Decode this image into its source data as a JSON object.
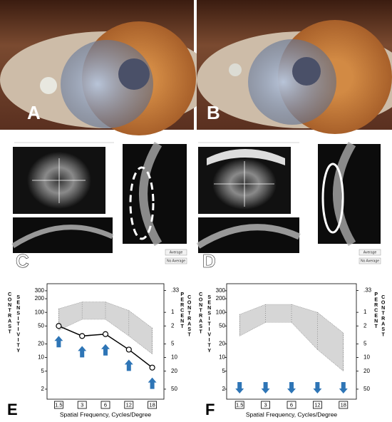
{
  "photo_labels": [
    "A",
    "B"
  ],
  "oct_panels": [
    {
      "label": "C",
      "buttons": [
        "Average",
        "No Average"
      ]
    },
    {
      "label": "D",
      "buttons": [
        "Average",
        "No Average"
      ]
    }
  ],
  "chart_data": [
    {
      "type": "line",
      "label": "E",
      "categories": [
        "1.5",
        "3",
        "6",
        "12",
        "18"
      ],
      "values": [
        50,
        30,
        33,
        15,
        6
      ],
      "color": "#000000",
      "normal_range": {
        "lower": [
          40,
          70,
          70,
          30,
          12
        ],
        "upper": [
          120,
          170,
          170,
          110,
          45
        ],
        "color": "#d6d6d6"
      },
      "ylim": [
        1.2,
        430
      ],
      "yticks": [
        2,
        5,
        10,
        20,
        50,
        100,
        200,
        300
      ],
      "y2lim": [
        83.3,
        0.233
      ],
      "y2ticks": [
        {
          "value": 0.33,
          "label": ".33"
        },
        1,
        2,
        5,
        10,
        20,
        50
      ],
      "log_scale": true,
      "y_label_lines": [
        "CONTRAST",
        "SENSITIVITY"
      ],
      "y2_label_lines": [
        "PERCENT",
        "CONTRAST"
      ],
      "x_label": "Spatial Frequency, Cycles/Degree",
      "arrows": "up",
      "arrow_color": "#2e75b6"
    },
    {
      "type": "line",
      "label": "F",
      "categories": [
        "1.5",
        "3",
        "6",
        "12",
        "18"
      ],
      "normal_range": {
        "lower": [
          30,
          60,
          60,
          15,
          5
        ],
        "upper": [
          90,
          150,
          150,
          100,
          35
        ],
        "color": "#d6d6d6"
      },
      "ylim": [
        1.2,
        430
      ],
      "yticks": [
        2,
        5,
        10,
        20,
        50,
        100,
        200,
        300
      ],
      "y2lim": [
        83.3,
        0.233
      ],
      "y2ticks": [
        {
          "value": 0.33,
          "label": ".33"
        },
        1,
        2,
        5,
        10,
        20,
        50
      ],
      "log_scale": true,
      "y_label_lines": [
        "CONTRAST",
        "SENSITIVITY"
      ],
      "y2_label_lines": [
        "PERCENT",
        "CONTRAST"
      ],
      "x_label": "Spatial Frequency, Cycles/Degree",
      "arrows": "down",
      "arrow_color": "#2e75b6"
    }
  ]
}
